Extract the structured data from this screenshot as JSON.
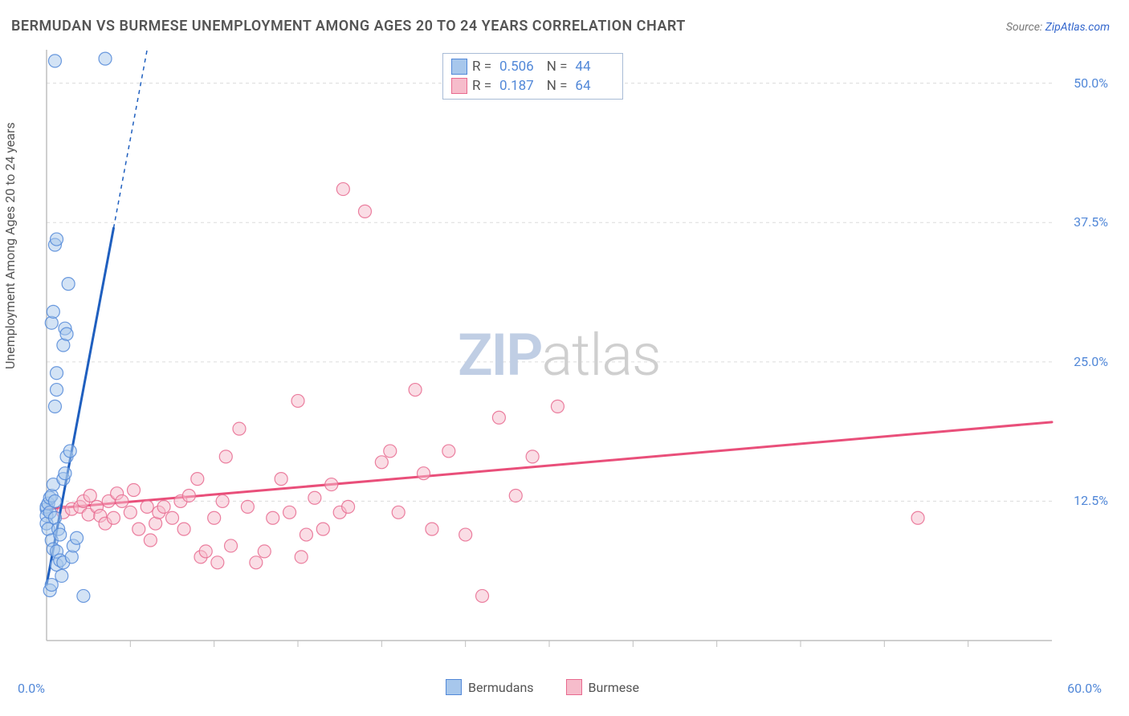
{
  "title": "BERMUDAN VS BURMESE UNEMPLOYMENT AMONG AGES 20 TO 24 YEARS CORRELATION CHART",
  "source_prefix": "Source: ",
  "source_link": "ZipAtlas.com",
  "ylabel": "Unemployment Among Ages 20 to 24 years",
  "watermark": {
    "zip": "ZIP",
    "atlas": "atlas"
  },
  "chart": {
    "type": "scatter-with-regression",
    "background_color": "#ffffff",
    "grid_color": "#dcdcdc",
    "axis_color": "#bfbfbf",
    "xlim": [
      0,
      60
    ],
    "ylim": [
      0,
      53
    ],
    "xtick_step": 5,
    "ytick_labels": [
      12.5,
      25.0,
      37.5,
      50.0
    ],
    "x_axis_labels": {
      "min": "0.0%",
      "max": "60.0%"
    },
    "y_axis_label_color": "#5288d8",
    "marker_radius": 8,
    "marker_opacity": 0.5,
    "marker_stroke_w": 1.2,
    "series": [
      {
        "key": "bermudans",
        "label": "Bermudans",
        "fill": "#a7c7ec",
        "stroke": "#5288d8",
        "stroke_opacity": 0.85,
        "line_color": "#1f5fbf",
        "line_width": 3,
        "reg_intercept": 5.0,
        "reg_slope": 8.0,
        "reg_solid_xmax": 4.0,
        "reg_dash_xmax": 6.0,
        "R": 0.506,
        "N": 44,
        "points": [
          [
            0.0,
            11.8
          ],
          [
            0.0,
            12.0
          ],
          [
            0.0,
            11.2
          ],
          [
            0.0,
            10.5
          ],
          [
            0.1,
            10.0
          ],
          [
            0.1,
            12.3
          ],
          [
            0.2,
            11.5
          ],
          [
            0.2,
            12.8
          ],
          [
            0.3,
            13.0
          ],
          [
            0.3,
            9.0
          ],
          [
            0.4,
            8.2
          ],
          [
            0.4,
            14.0
          ],
          [
            0.5,
            11.0
          ],
          [
            0.5,
            12.5
          ],
          [
            0.6,
            6.8
          ],
          [
            0.6,
            8.0
          ],
          [
            0.7,
            10.0
          ],
          [
            0.8,
            9.5
          ],
          [
            0.8,
            7.2
          ],
          [
            0.9,
            5.8
          ],
          [
            1.0,
            7.0
          ],
          [
            1.0,
            14.5
          ],
          [
            1.1,
            15.0
          ],
          [
            1.2,
            16.5
          ],
          [
            1.4,
            17.0
          ],
          [
            1.5,
            7.5
          ],
          [
            1.6,
            8.5
          ],
          [
            1.8,
            9.2
          ],
          [
            0.5,
            21.0
          ],
          [
            0.6,
            22.5
          ],
          [
            0.6,
            24.0
          ],
          [
            1.0,
            26.5
          ],
          [
            1.1,
            28.0
          ],
          [
            1.2,
            27.5
          ],
          [
            0.3,
            28.5
          ],
          [
            0.4,
            29.5
          ],
          [
            1.3,
            32.0
          ],
          [
            0.5,
            35.5
          ],
          [
            0.6,
            36.0
          ],
          [
            0.5,
            52.0
          ],
          [
            3.5,
            52.2
          ],
          [
            2.2,
            4.0
          ],
          [
            0.2,
            4.5
          ],
          [
            0.3,
            5.0
          ]
        ]
      },
      {
        "key": "burmese",
        "label": "Burmese",
        "fill": "#f6bccb",
        "stroke": "#e86a8f",
        "stroke_opacity": 0.85,
        "line_color": "#e94f7a",
        "line_width": 3,
        "reg_intercept": 11.8,
        "reg_slope": 0.13,
        "reg_solid_xmax": 60,
        "reg_dash_xmax": 60,
        "R": 0.187,
        "N": 64,
        "points": [
          [
            1.0,
            11.5
          ],
          [
            1.5,
            11.8
          ],
          [
            2.0,
            12.0
          ],
          [
            2.2,
            12.5
          ],
          [
            2.5,
            11.3
          ],
          [
            2.6,
            13.0
          ],
          [
            3.0,
            12.0
          ],
          [
            3.2,
            11.2
          ],
          [
            3.5,
            10.5
          ],
          [
            3.7,
            12.5
          ],
          [
            4.0,
            11.0
          ],
          [
            4.2,
            13.2
          ],
          [
            4.5,
            12.5
          ],
          [
            5.0,
            11.5
          ],
          [
            5.2,
            13.5
          ],
          [
            5.5,
            10.0
          ],
          [
            6.0,
            12.0
          ],
          [
            6.2,
            9.0
          ],
          [
            6.5,
            10.5
          ],
          [
            6.7,
            11.5
          ],
          [
            7.0,
            12.0
          ],
          [
            7.5,
            11.0
          ],
          [
            8.0,
            12.5
          ],
          [
            8.2,
            10.0
          ],
          [
            8.5,
            13.0
          ],
          [
            9.0,
            14.5
          ],
          [
            9.2,
            7.5
          ],
          [
            9.5,
            8.0
          ],
          [
            10.0,
            11.0
          ],
          [
            10.2,
            7.0
          ],
          [
            10.5,
            12.5
          ],
          [
            10.7,
            16.5
          ],
          [
            11.0,
            8.5
          ],
          [
            11.5,
            19.0
          ],
          [
            12.0,
            12.0
          ],
          [
            12.5,
            7.0
          ],
          [
            13.0,
            8.0
          ],
          [
            13.5,
            11.0
          ],
          [
            14.0,
            14.5
          ],
          [
            14.5,
            11.5
          ],
          [
            15.0,
            21.5
          ],
          [
            15.2,
            7.5
          ],
          [
            15.5,
            9.5
          ],
          [
            16.0,
            12.8
          ],
          [
            16.5,
            10.0
          ],
          [
            17.0,
            14.0
          ],
          [
            17.5,
            11.5
          ],
          [
            17.7,
            40.5
          ],
          [
            18.0,
            12.0
          ],
          [
            19.0,
            38.5
          ],
          [
            20.0,
            16.0
          ],
          [
            20.5,
            17.0
          ],
          [
            21.0,
            11.5
          ],
          [
            22.0,
            22.5
          ],
          [
            22.5,
            15.0
          ],
          [
            23.0,
            10.0
          ],
          [
            24.0,
            17.0
          ],
          [
            25.0,
            9.5
          ],
          [
            27.0,
            20.0
          ],
          [
            28.0,
            13.0
          ],
          [
            29.0,
            16.5
          ],
          [
            30.5,
            21.0
          ],
          [
            26.0,
            4.0
          ],
          [
            52.0,
            11.0
          ]
        ]
      }
    ]
  },
  "stats_box": {
    "border_color": "#a8bbd6",
    "rows": [
      {
        "sw_fill": "#a7c7ec",
        "sw_stroke": "#5288d8",
        "R_label": "R =",
        "R": "0.506",
        "N_label": "N =",
        "N": "44"
      },
      {
        "sw_fill": "#f6bccb",
        "sw_stroke": "#e86a8f",
        "R_label": "R =",
        "R": "0.187",
        "N_label": "N =",
        "N": "64"
      }
    ]
  },
  "legend_bottom": [
    {
      "sw_fill": "#a7c7ec",
      "sw_stroke": "#5288d8",
      "label": "Bermudans"
    },
    {
      "sw_fill": "#f6bccb",
      "sw_stroke": "#e86a8f",
      "label": "Burmese"
    }
  ]
}
